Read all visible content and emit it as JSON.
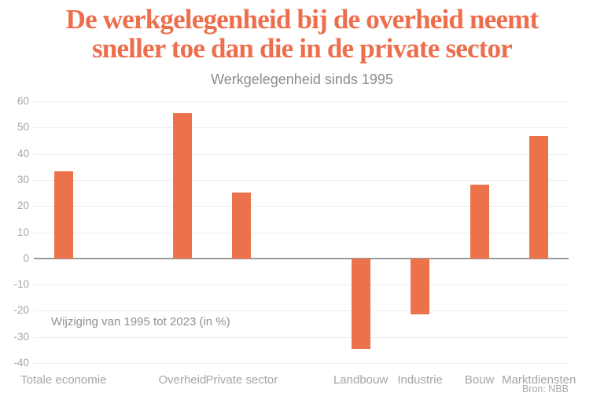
{
  "header": {
    "title_lines": [
      "De werkgelegenheid bij de overheid neemt",
      "sneller toe dan die in de private sector"
    ],
    "subtitle": "Werkgelegenheid sinds 1995"
  },
  "annotation": "Wijziging van 1995 tot 2023 (in %)",
  "source": "Bron: NBB",
  "colors": {
    "title": "#ED6E4C",
    "accent": "#EC724B",
    "subtitle": "#8C8C8C",
    "grid": "#EDEDED",
    "zero_line": "#9B9B9B",
    "tick_label": "#A6A6A6",
    "category_label": "#A5A5A5",
    "annotation": "#8F8F8F",
    "source": "#ABABAB"
  },
  "chart_data": {
    "type": "bar",
    "title": "Werkgelegenheid sinds 1995",
    "annotation": "Wijziging van 1995 tot 2023 (in %)",
    "categories": [
      "Totale economie",
      "Overheid",
      "Private sector",
      "Landbouw",
      "Industrie",
      "Bouw",
      "Marktdiensten"
    ],
    "values": [
      33.4,
      55.5,
      25.3,
      -34.5,
      -21.5,
      28.3,
      46.9
    ],
    "slots": [
      0,
      2,
      3,
      5,
      6,
      7,
      8
    ],
    "total_slots": 9,
    "xlabel": "",
    "ylabel": "",
    "ylim": [
      -40,
      60
    ],
    "ytick_step": 10,
    "grid": true,
    "legend": false,
    "bar_color": "#EC724B",
    "source": "Bron: NBB"
  }
}
